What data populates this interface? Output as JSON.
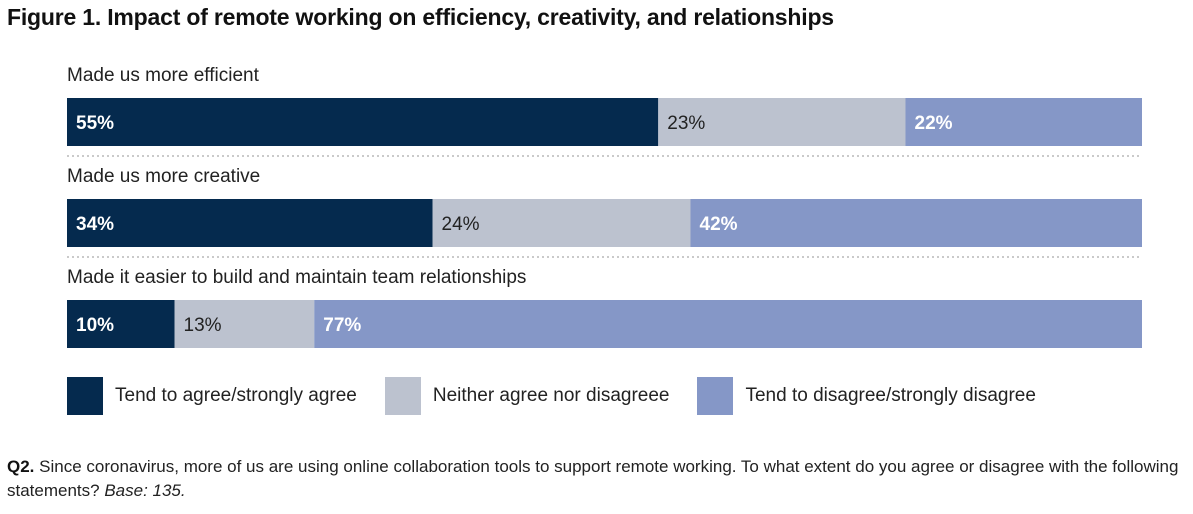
{
  "chart_data": {
    "type": "bar",
    "orientation": "horizontal",
    "stacked": true,
    "title": "Figure 1. Impact of remote working on efficiency, creativity, and relationships",
    "categories": [
      "Made us more efficient",
      "Made us more creative",
      "Made it easier to build and maintain team relationships"
    ],
    "series": [
      {
        "name": "Tend to agree/strongly agree",
        "values": [
          55,
          34,
          10
        ],
        "color": "#052a4e",
        "label_color": "#ffffff"
      },
      {
        "name": "Neither agree nor disagreee",
        "values": [
          23,
          24,
          13
        ],
        "color": "#bcc2cf",
        "label_color": "#222222"
      },
      {
        "name": "Tend to disagree/strongly disagree",
        "values": [
          22,
          42,
          77
        ],
        "color": "#8597c7",
        "label_color": "#ffffff"
      }
    ],
    "value_suffix": "%",
    "xlim": [
      0,
      100
    ],
    "legend": "bottom"
  },
  "footnote": {
    "label": "Q2.",
    "text": " Since coronavirus, more of us are using online collaboration tools to support remote working. To what extent do you agree or disagree with the following statements? ",
    "base": "Base: 135."
  }
}
